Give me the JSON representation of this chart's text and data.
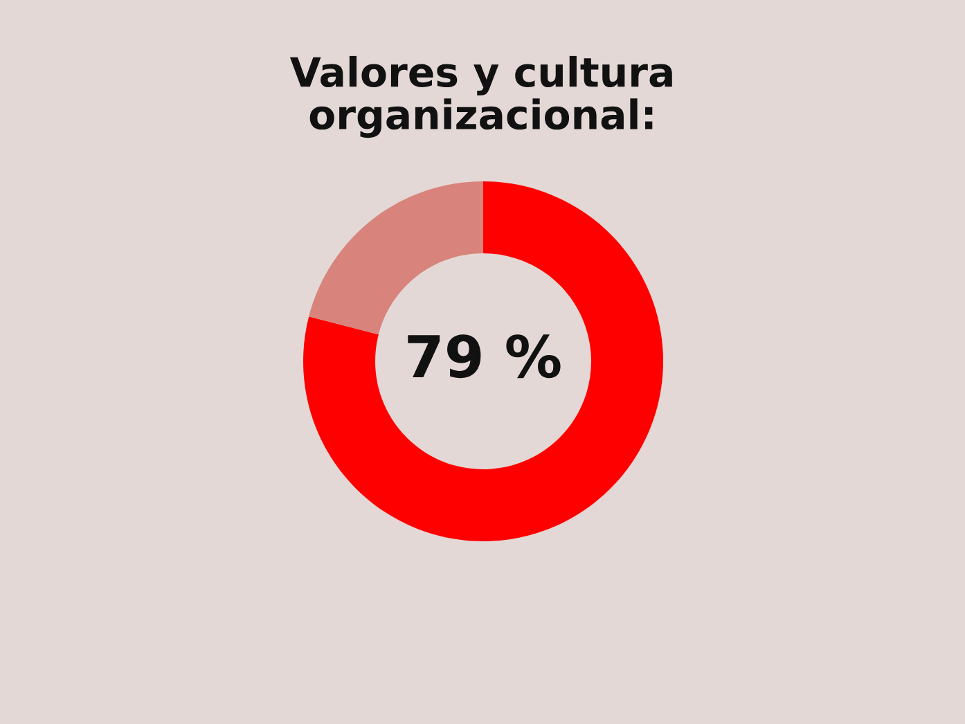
{
  "chart_data": {
    "type": "donut",
    "title": "Valores y cultura\norganizacional:",
    "categories": [
      null,
      null
    ],
    "values": [
      79,
      21
    ],
    "colors": [
      "#ff0000",
      "#d8837b"
    ],
    "value_labels": [
      "79 %",
      null
    ],
    "legend": false
  }
}
